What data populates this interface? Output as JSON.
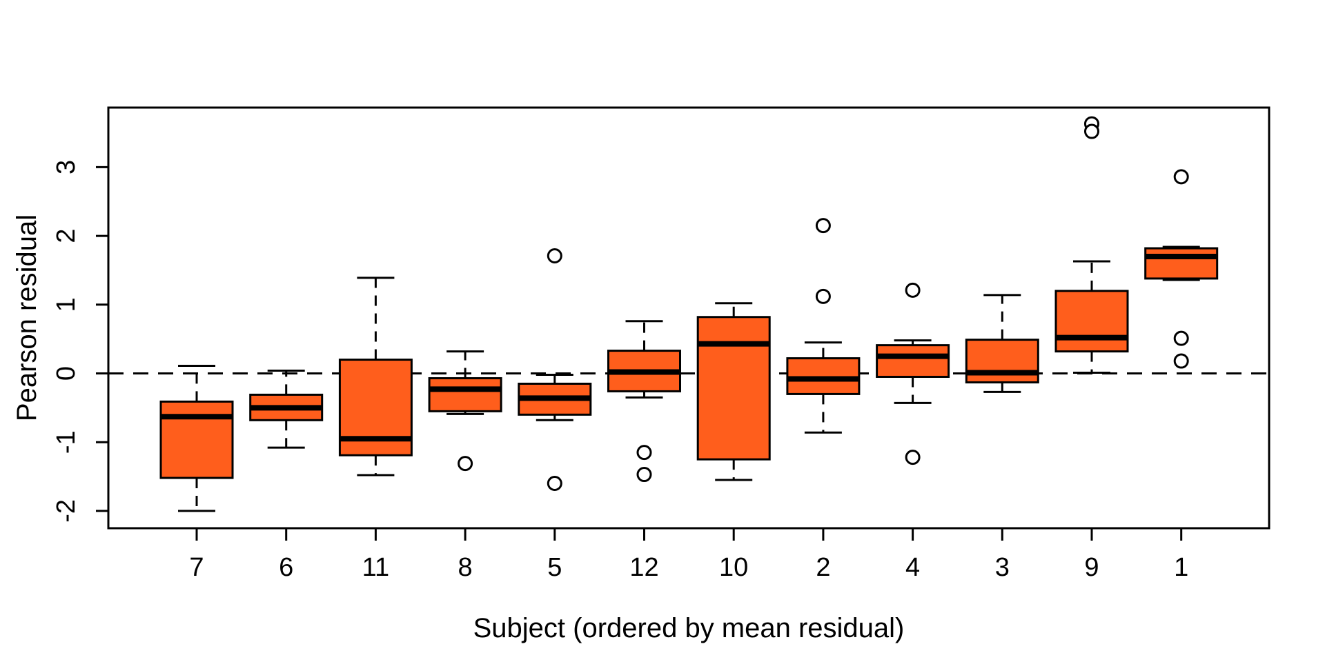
{
  "chart_data": {
    "type": "boxplot",
    "title": "",
    "xlabel": "Subject (ordered by mean residual)",
    "ylabel": "Pearson residual",
    "categories": [
      "7",
      "6",
      "11",
      "8",
      "5",
      "12",
      "10",
      "2",
      "4",
      "3",
      "9",
      "1"
    ],
    "yticks": [
      3,
      2,
      1,
      0,
      -1,
      -2
    ],
    "ytick_labels": [
      "3",
      "2",
      "1",
      "0",
      "-1",
      "-2"
    ],
    "ylim": [
      -2.25,
      3.87
    ],
    "reference_line": 0,
    "grid": false,
    "legend": null,
    "box_fill": "#FF5E1C",
    "stroke_color": "#000000",
    "outlier_fill": "#ffffff",
    "boxes": [
      {
        "subject": "7",
        "whisker_low": -2.0,
        "q1": -1.52,
        "median": -0.63,
        "q3": -0.41,
        "whisker_high": 0.11,
        "outliers": []
      },
      {
        "subject": "6",
        "whisker_low": -1.08,
        "q1": -0.68,
        "median": -0.5,
        "q3": -0.31,
        "whisker_high": 0.04,
        "outliers": []
      },
      {
        "subject": "11",
        "whisker_low": -1.48,
        "q1": -1.19,
        "median": -0.95,
        "q3": 0.2,
        "whisker_high": 1.39,
        "outliers": []
      },
      {
        "subject": "8",
        "whisker_low": -0.59,
        "q1": -0.55,
        "median": -0.23,
        "q3": -0.07,
        "whisker_high": 0.32,
        "outliers": [
          -1.31
        ]
      },
      {
        "subject": "5",
        "whisker_low": -0.68,
        "q1": -0.6,
        "median": -0.36,
        "q3": -0.15,
        "whisker_high": -0.02,
        "outliers": [
          1.71,
          -1.6
        ]
      },
      {
        "subject": "12",
        "whisker_low": -0.35,
        "q1": -0.26,
        "median": 0.02,
        "q3": 0.33,
        "whisker_high": 0.76,
        "outliers": [
          -1.15,
          -1.47
        ]
      },
      {
        "subject": "10",
        "whisker_low": -1.55,
        "q1": -1.25,
        "median": 0.43,
        "q3": 0.82,
        "whisker_high": 1.02,
        "outliers": []
      },
      {
        "subject": "2",
        "whisker_low": -0.86,
        "q1": -0.3,
        "median": -0.08,
        "q3": 0.22,
        "whisker_high": 0.45,
        "outliers": [
          2.15,
          1.12
        ]
      },
      {
        "subject": "4",
        "whisker_low": -0.43,
        "q1": -0.05,
        "median": 0.25,
        "q3": 0.41,
        "whisker_high": 0.48,
        "outliers": [
          1.21,
          -1.22
        ]
      },
      {
        "subject": "3",
        "whisker_low": -0.27,
        "q1": -0.13,
        "median": 0.01,
        "q3": 0.49,
        "whisker_high": 1.14,
        "outliers": []
      },
      {
        "subject": "9",
        "whisker_low": 0.01,
        "q1": 0.32,
        "median": 0.52,
        "q3": 1.2,
        "whisker_high": 1.63,
        "outliers": [
          3.63,
          3.52
        ]
      },
      {
        "subject": "1",
        "whisker_low": 1.36,
        "q1": 1.38,
        "median": 1.7,
        "q3": 1.82,
        "whisker_high": 1.84,
        "outliers": [
          2.86,
          0.51,
          0.18
        ]
      }
    ]
  }
}
